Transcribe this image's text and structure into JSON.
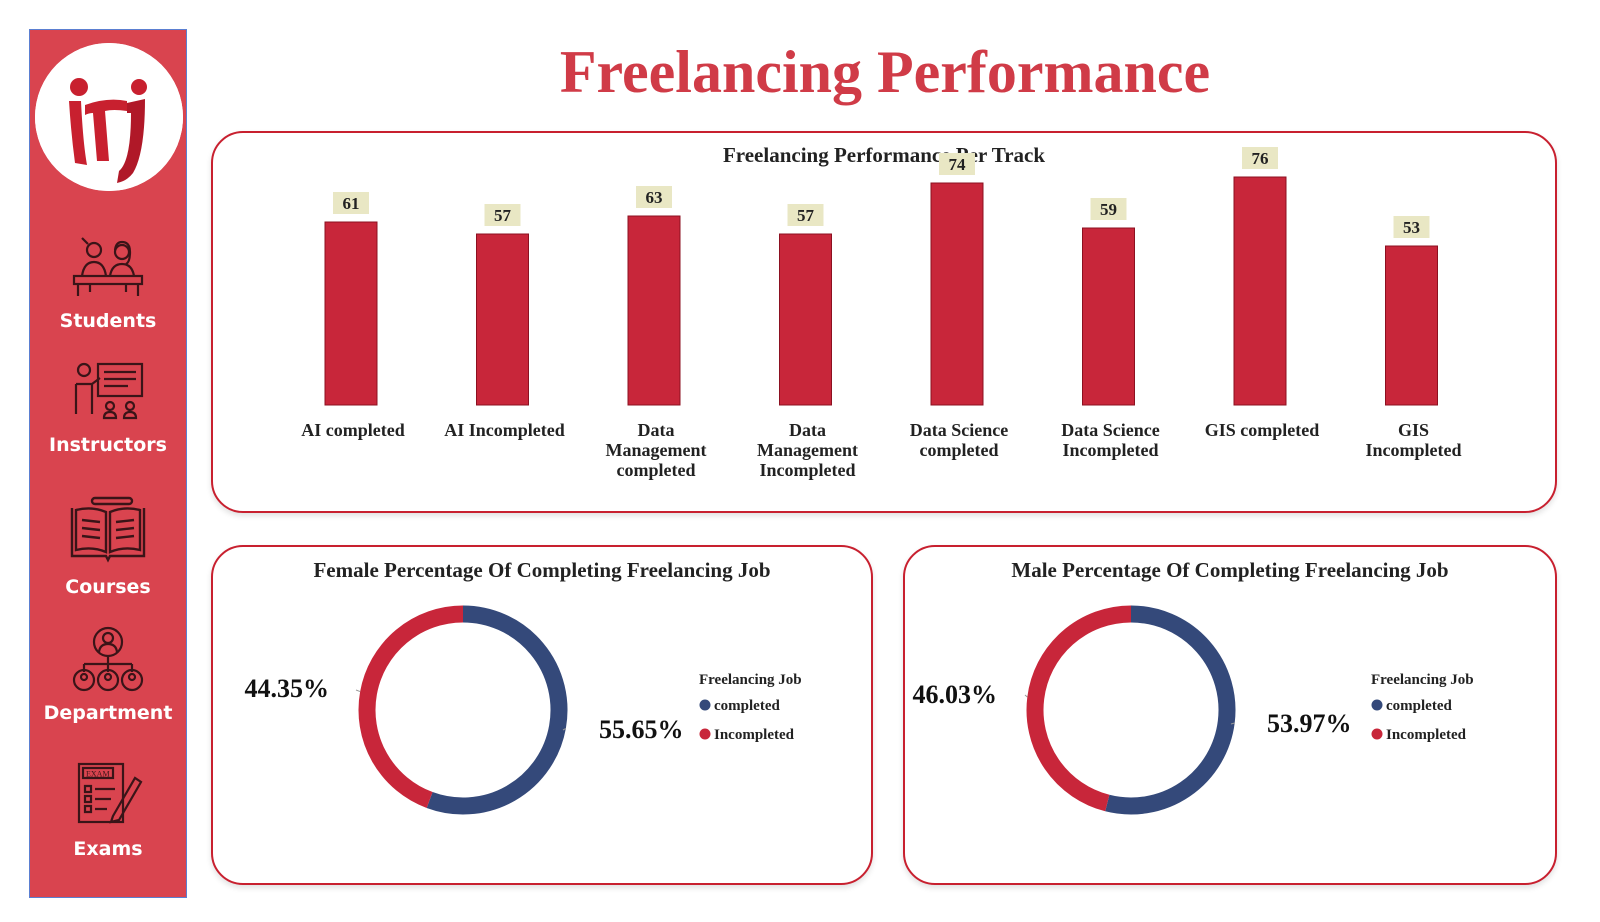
{
  "page": {
    "title": "Freelancing Performance"
  },
  "colors": {
    "accent": "#c8202f",
    "sidebar": "#d9444f",
    "completed": "#34497a",
    "incompleted": "#c8263a",
    "data_label_bg": "#e9e7c4"
  },
  "sidebar": {
    "logo_icon": "iti-logo",
    "items": [
      {
        "label": "Students",
        "icon": "students-icon"
      },
      {
        "label": "Instructors",
        "icon": "instructor-board-icon"
      },
      {
        "label": "Courses",
        "icon": "open-book-icon"
      },
      {
        "label": "Department",
        "icon": "org-chart-icon"
      },
      {
        "label": "Exams",
        "icon": "exam-paper-icon"
      }
    ]
  },
  "chart_data": [
    {
      "type": "bar",
      "title": "Freelancing Performance Per Track",
      "categories": [
        "AI completed",
        "AI Incompleted",
        "Data Management completed",
        "Data Management Incompleted",
        "Data Science completed",
        "Data Science Incompleted",
        "GIS completed",
        "GIS Incompleted"
      ],
      "category_lines": [
        [
          "AI completed"
        ],
        [
          "AI Incompleted"
        ],
        [
          "Data",
          "Management",
          "completed"
        ],
        [
          "Data",
          "Management",
          "Incompleted"
        ],
        [
          "Data Science",
          "completed"
        ],
        [
          "Data Science",
          "Incompleted"
        ],
        [
          "GIS completed"
        ],
        [
          "GIS",
          "Incompleted"
        ]
      ],
      "values": [
        61,
        57,
        63,
        57,
        74,
        59,
        76,
        53
      ],
      "xlabel": "",
      "ylabel": "",
      "ylim": [
        0,
        80
      ],
      "grid": false,
      "data_labels": true
    },
    {
      "type": "pie",
      "title": "Female Percentage Of Completing Freelancing Job",
      "legend_title": "Freelancing Job",
      "legend_position": "right",
      "slices": [
        {
          "label": "completed",
          "value": 55.65,
          "display": "55.65%"
        },
        {
          "label": "Incompleted",
          "value": 44.35,
          "display": "44.35%"
        }
      ]
    },
    {
      "type": "pie",
      "title": "Male Percentage Of Completing Freelancing Job",
      "legend_title": "Freelancing Job",
      "legend_position": "right",
      "slices": [
        {
          "label": "completed",
          "value": 53.97,
          "display": "53.97%"
        },
        {
          "label": "Incompleted",
          "value": 46.03,
          "display": "46.03%"
        }
      ]
    }
  ]
}
